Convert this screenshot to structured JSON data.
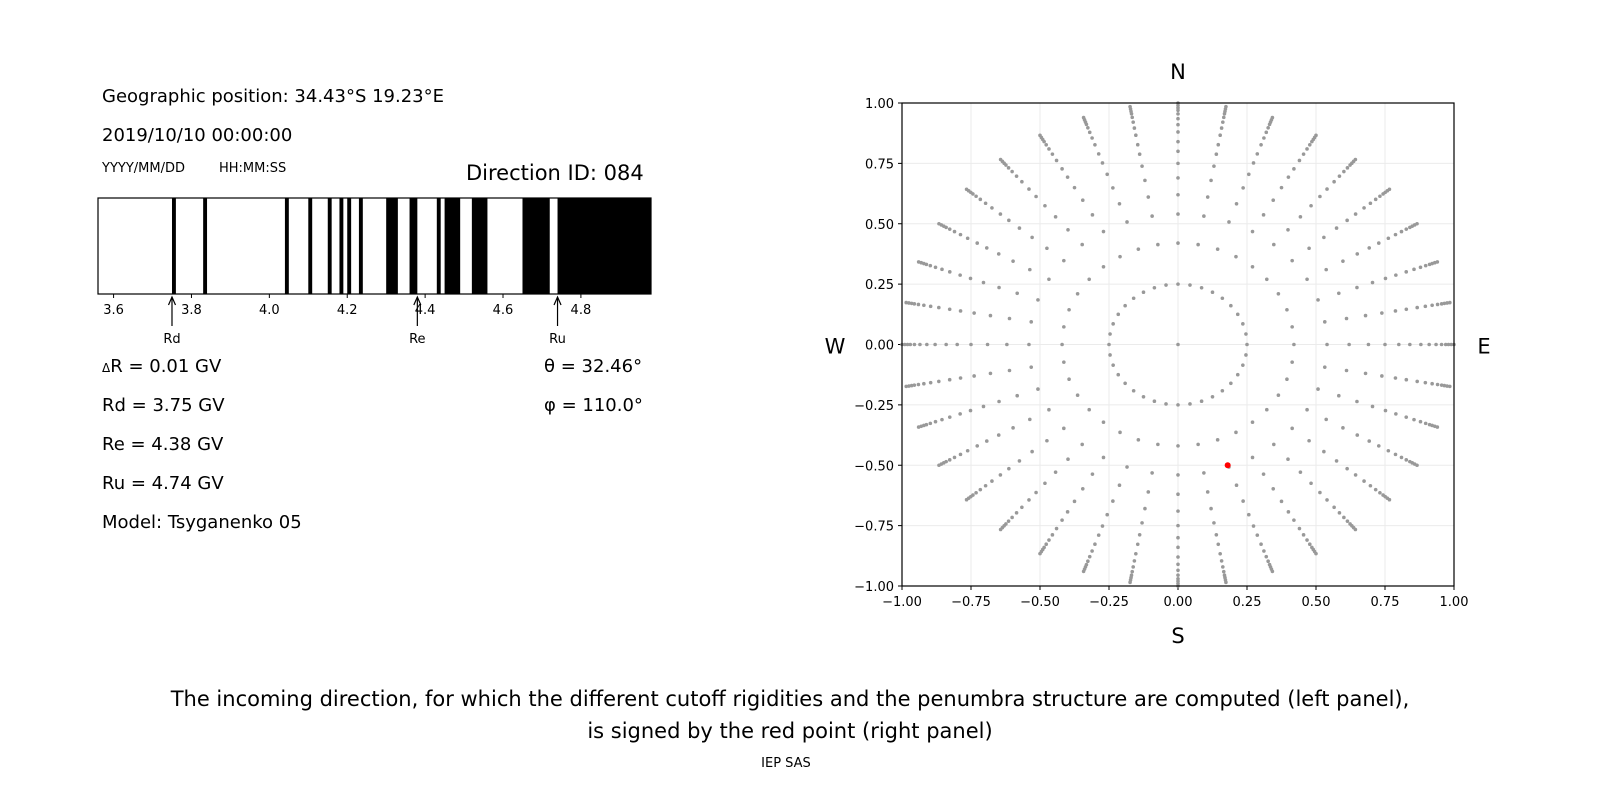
{
  "left": {
    "position": "Geographic position: 34.43°S 19.23°E",
    "datetime": "2019/10/10 00:00:00",
    "date_format": "YYYY/MM/DD",
    "time_format": "HH:MM:SS",
    "direction_id": "Direction ID: 084",
    "dR": "R = 0.01 GV",
    "dR_prefix": "Δ",
    "rd": "Rd = 3.75 GV",
    "re": "Re = 4.38 GV",
    "ru": "Ru = 4.74 GV",
    "model": "Model: Tsyganenko 05",
    "theta": "θ = 32.46°",
    "phi": "φ = 110.0°"
  },
  "caption": {
    "line1": "The incoming direction, for which the different cutoff rigidities and the penumbra structure are computed (left panel),",
    "line2": "is signed by the red point (right panel)",
    "credit": "IEP SAS"
  },
  "chart_data": [
    {
      "type": "penumbra-bar",
      "xlim": [
        3.56,
        4.98
      ],
      "xticks": [
        3.6,
        3.8,
        4.0,
        4.2,
        4.4,
        4.6,
        4.8
      ],
      "xtick_labels": [
        "3.6",
        "3.8",
        "4.0",
        "4.2",
        "4.4",
        "4.6",
        "4.8"
      ],
      "forbidden_intervals": [
        [
          3.75,
          3.76
        ],
        [
          3.83,
          3.84
        ],
        [
          4.04,
          4.05
        ],
        [
          4.1,
          4.11
        ],
        [
          4.15,
          4.16
        ],
        [
          4.18,
          4.19
        ],
        [
          4.2,
          4.21
        ],
        [
          4.23,
          4.24
        ],
        [
          4.3,
          4.33
        ],
        [
          4.36,
          4.38
        ],
        [
          4.43,
          4.44
        ],
        [
          4.45,
          4.49
        ],
        [
          4.52,
          4.56
        ],
        [
          4.65,
          4.72
        ],
        [
          4.74,
          4.98
        ]
      ],
      "annotations": [
        {
          "label": "Rd",
          "x": 3.75
        },
        {
          "label": "Re",
          "x": 4.38
        },
        {
          "label": "Ru",
          "x": 4.74
        }
      ],
      "colors": {
        "allowed": "#ffffff",
        "forbidden": "#000000"
      }
    },
    {
      "type": "scatter",
      "xlim": [
        -1,
        1
      ],
      "ylim": [
        -1,
        1
      ],
      "ticks": [
        -1.0,
        -0.75,
        -0.5,
        -0.25,
        0.0,
        0.25,
        0.5,
        0.75,
        1.0
      ],
      "tick_labels": [
        "−1.00",
        "−0.75",
        "−0.50",
        "−0.25",
        "0.00",
        "0.25",
        "0.50",
        "0.75",
        "1.00"
      ],
      "grid": true,
      "compass": {
        "N": "N",
        "S": "S",
        "W": "W",
        "E": "E"
      },
      "grid_points": {
        "azimuth_step_deg": 10,
        "radii": [
          0.25,
          0.42,
          0.54,
          0.62,
          0.69,
          0.75,
          0.8,
          0.84,
          0.88,
          0.91,
          0.935,
          0.955,
          0.97,
          0.98,
          0.99,
          1.0
        ],
        "center": [
          0,
          0
        ],
        "color": "#999999"
      },
      "selected_point": {
        "x": 0.18,
        "y": -0.5,
        "color": "#ff0000"
      }
    }
  ]
}
